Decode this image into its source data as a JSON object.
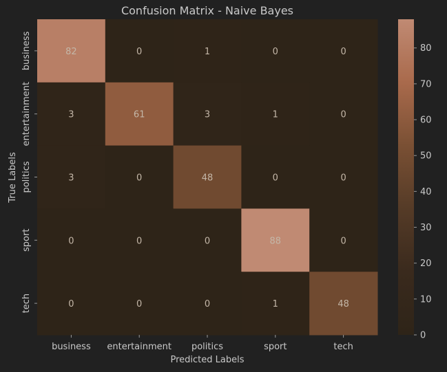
{
  "chart_data": {
    "type": "heatmap",
    "title": "Confusion Matrix - Naive Bayes",
    "xlabel": "Predicted Labels",
    "ylabel": "True Labels",
    "x_categories": [
      "business",
      "entertainment",
      "politics",
      "sport",
      "tech"
    ],
    "y_categories": [
      "business",
      "entertainment",
      "politics",
      "sport",
      "tech"
    ],
    "values": [
      [
        82,
        0,
        1,
        0,
        0
      ],
      [
        3,
        61,
        3,
        1,
        0
      ],
      [
        3,
        0,
        48,
        0,
        0
      ],
      [
        0,
        0,
        0,
        88,
        0
      ],
      [
        0,
        0,
        0,
        1,
        48
      ]
    ],
    "colorbar": {
      "min": 0,
      "max": 88,
      "ticks": [
        0,
        10,
        20,
        30,
        40,
        50,
        60,
        70,
        80
      ],
      "colors": [
        "#2e2418",
        "#3a2a1d",
        "#553b27",
        "#7a5034",
        "#a96a4c",
        "#c08a73"
      ]
    },
    "legend": "none",
    "grid": false
  }
}
